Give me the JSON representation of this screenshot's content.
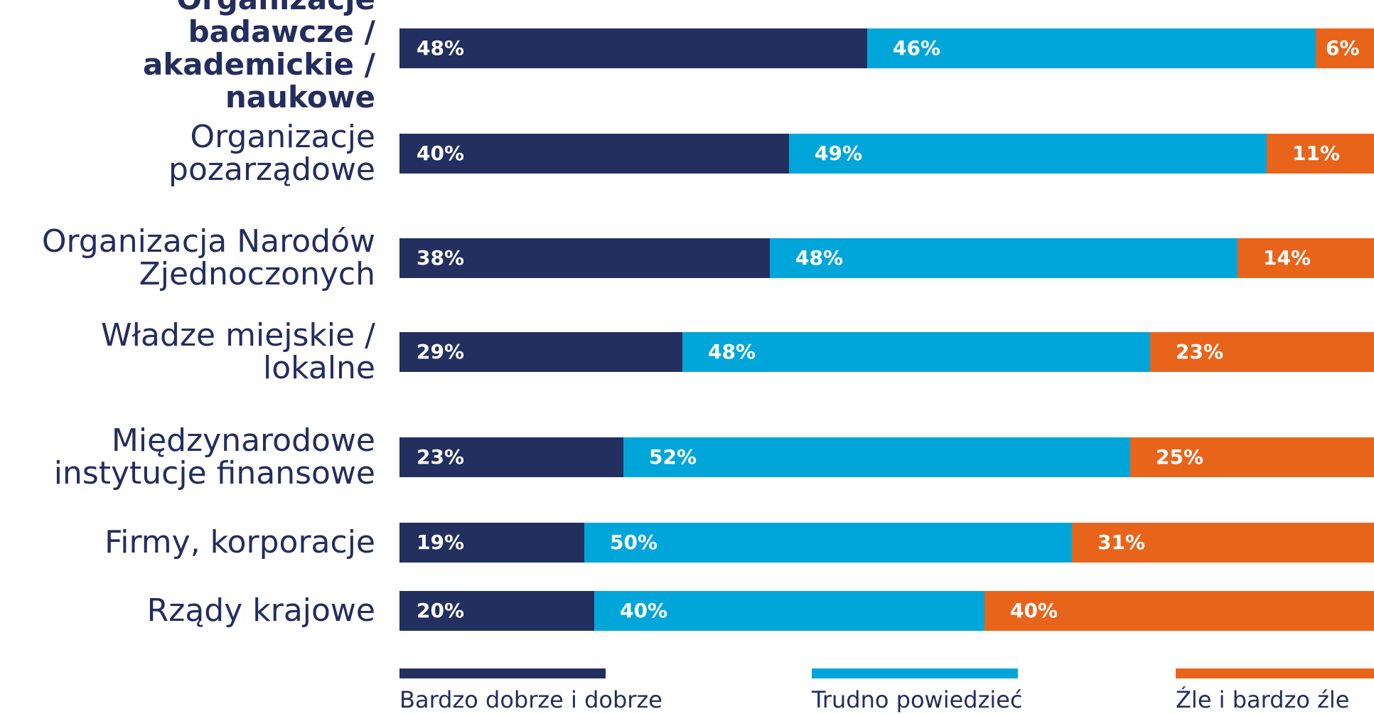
{
  "chart_data": {
    "type": "bar",
    "orientation": "horizontal",
    "stacked": true,
    "percent_scale": true,
    "categories": [
      "Organizacje badawcze / akademickie / naukowe",
      "Organizacje pozarządowe",
      "Organizacja Narodów Zjednoczonych",
      "Władze miejskie / lokalne",
      "Międzynarodowe instytucje finansowe",
      "Firmy, korporacje",
      "Rządy krajowe"
    ],
    "highlighted_category": 0,
    "series": [
      {
        "name": "Bardzo dobrze i dobrze",
        "color": "#232f5f",
        "values": [
          48,
          40,
          38,
          29,
          23,
          19,
          20
        ],
        "labels": [
          "48%",
          "40%",
          "38%",
          "29%",
          "23%",
          "19%",
          "20%"
        ]
      },
      {
        "name": "Trudno powiedzieć",
        "color": "#00a6d9",
        "values": [
          46,
          49,
          48,
          48,
          52,
          50,
          40
        ],
        "labels": [
          "46%",
          "49%",
          "48%",
          "48%",
          "52%",
          "50%",
          "40%"
        ]
      },
      {
        "name": "Źle i bardzo źle",
        "color": "#e8641b",
        "values": [
          6,
          11,
          14,
          23,
          25,
          31,
          40
        ],
        "labels": [
          "6%",
          "11%",
          "14%",
          "23%",
          "25%",
          "31%",
          "40%"
        ]
      }
    ],
    "title": "",
    "xlabel": "",
    "ylabel": "",
    "xlim": [
      0,
      100
    ],
    "grid": false,
    "legend_position": "bottom"
  }
}
